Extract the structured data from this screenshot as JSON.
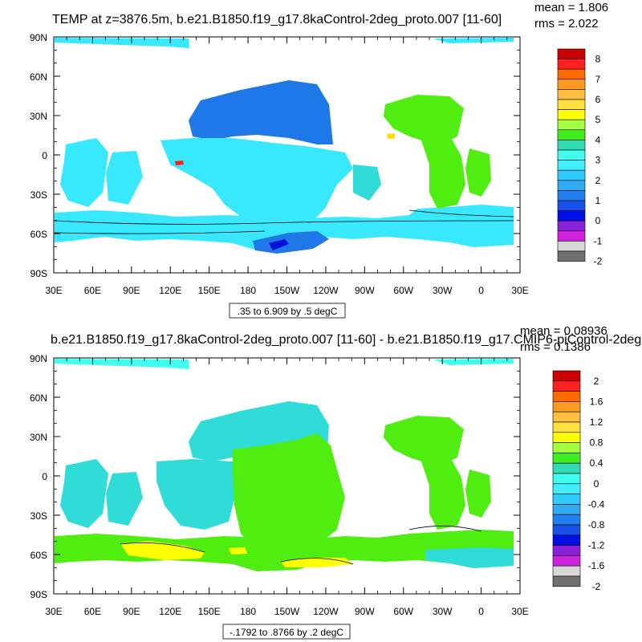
{
  "panels": [
    {
      "title": "TEMP at z=3876.5m, b.e21.B1850.f19_g17.8kaControl-2deg_proto.007 [11-60]",
      "stats": {
        "mean": "mean = 1.806",
        "rms": "rms = 2.022"
      },
      "contour_info": ".35 to 6.909 by .5 degC",
      "colorbar": {
        "labels": [
          "8",
          "7",
          "6",
          "5",
          "4",
          "3",
          "2",
          "1",
          "0",
          "-1",
          "-2"
        ],
        "colors": [
          "#cc0000",
          "#ff2020",
          "#ff6a00",
          "#ff9a20",
          "#ffbf40",
          "#ffe040",
          "#ffff00",
          "#a6ff40",
          "#40ee20",
          "#30dcb0",
          "#40ffee",
          "#40eeff",
          "#30ccff",
          "#30aaf0",
          "#2080f0",
          "#1850e8",
          "#0010e8",
          "#8a20d8",
          "#d020e0",
          "#d8d8d8",
          "#707070"
        ]
      }
    },
    {
      "title": "b.e21.B1850.f19_g17.8kaControl-2deg_proto.007 [11-60] - b.e21.B1850.f19_g17.CMIP6-piControl-2deg",
      "stats": {
        "mean": "mean = 0.08936",
        "rms": "rms = 0.1386"
      },
      "contour_info": "-.1792 to .8766 by .2 degC",
      "colorbar": {
        "labels": [
          "2",
          "1.6",
          "1.2",
          "0.8",
          "0.4",
          "0",
          "-0.4",
          "-0.8",
          "-1.2",
          "-1.6",
          "-2"
        ],
        "colors": [
          "#cc0000",
          "#ff2020",
          "#ff6a00",
          "#ff9a20",
          "#ffbf40",
          "#ffe040",
          "#ffff00",
          "#a6ff40",
          "#40ee20",
          "#30dcb0",
          "#40ffee",
          "#40eeff",
          "#30ccff",
          "#30aaf0",
          "#2080f0",
          "#1850e8",
          "#0010e8",
          "#8a20d8",
          "#d020e0",
          "#d8d8d8",
          "#707070"
        ]
      }
    }
  ],
  "chart_data": [
    {
      "type": "heatmap",
      "title": "TEMP at z=3876.5m, b.e21.B1850.f19_g17.8kaControl-2deg_proto.007 [11-60]",
      "x_ticks": [
        "30E",
        "60E",
        "90E",
        "120E",
        "150E",
        "180",
        "150W",
        "120W",
        "90W",
        "60W",
        "30W",
        "0",
        "30E"
      ],
      "y_ticks": [
        "90N",
        "60N",
        "30N",
        "0",
        "30S",
        "60S",
        "90S"
      ],
      "colorbar_levels": [
        8,
        7,
        6,
        5,
        4,
        3,
        2,
        1,
        0,
        -1,
        -2
      ],
      "units": "degC",
      "mean": 1.806,
      "rms": 2.022,
      "contour_min": 0.35,
      "contour_max": 6.909,
      "contour_interval": 0.5
    },
    {
      "type": "heatmap",
      "title": "b.e21.B1850.f19_g17.8kaControl-2deg_proto.007 [11-60] - b.e21.B1850.f19_g17.CMIP6-piControl-2deg",
      "x_ticks": [
        "30E",
        "60E",
        "90E",
        "120E",
        "150E",
        "180",
        "150W",
        "120W",
        "90W",
        "60W",
        "30W",
        "0",
        "30E"
      ],
      "y_ticks": [
        "90N",
        "60N",
        "30N",
        "0",
        "30S",
        "60S",
        "90S"
      ],
      "colorbar_levels": [
        2,
        1.6,
        1.2,
        0.8,
        0.4,
        0,
        -0.4,
        -0.8,
        -1.2,
        -1.6,
        -2
      ],
      "units": "degC",
      "mean": 0.08936,
      "rms": 0.1386,
      "contour_min": -0.1792,
      "contour_max": 0.8766,
      "contour_interval": 0.2
    }
  ],
  "map_colors": {
    "top": {
      "deep_blue": "#1e78e8",
      "cyan": "#38e8ff",
      "light_cyan": "#30dcd8",
      "green": "#50ee10",
      "yellow": "#ffe000",
      "navy": "#0010d8",
      "red": "#ff2020"
    },
    "bottom": {
      "cyan": "#30dcd8",
      "light_cyan": "#40ffee",
      "green": "#50ee10",
      "yellow": "#ffff00"
    }
  }
}
